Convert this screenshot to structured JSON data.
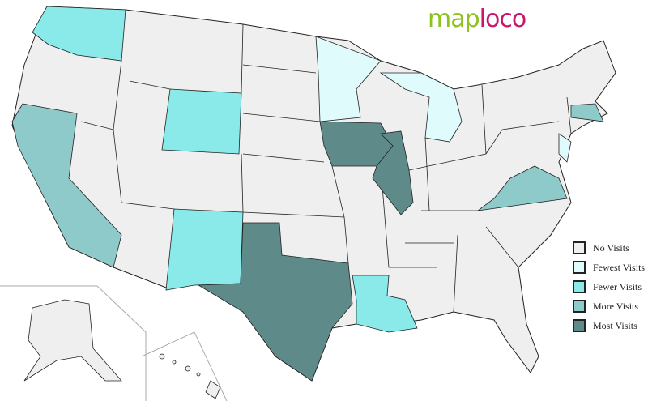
{
  "logo": {
    "part1": "map",
    "part2": "loco"
  },
  "colors": {
    "none": "#efefef",
    "fewest": "#e0fbfb",
    "fewer": "#8aeaea",
    "more": "#8fcaca",
    "most": "#5f8a8a"
  },
  "legend": [
    {
      "label": "No Visits",
      "level": "none"
    },
    {
      "label": "Fewest Visits",
      "level": "fewest"
    },
    {
      "label": "Fewer Visits",
      "level": "fewer"
    },
    {
      "label": "More Visits",
      "level": "more"
    },
    {
      "label": "Most Visits",
      "level": "most"
    }
  ],
  "states": {
    "Washington": "fewer",
    "Wyoming": "fewer",
    "New Mexico": "fewer",
    "Louisiana": "fewer",
    "Minnesota": "fewest",
    "Michigan": "fewest",
    "New Jersey": "fewest",
    "California": "more",
    "Virginia": "more",
    "Massachusetts": "more",
    "Texas": "most",
    "Iowa": "most",
    "Illinois": "most"
  }
}
